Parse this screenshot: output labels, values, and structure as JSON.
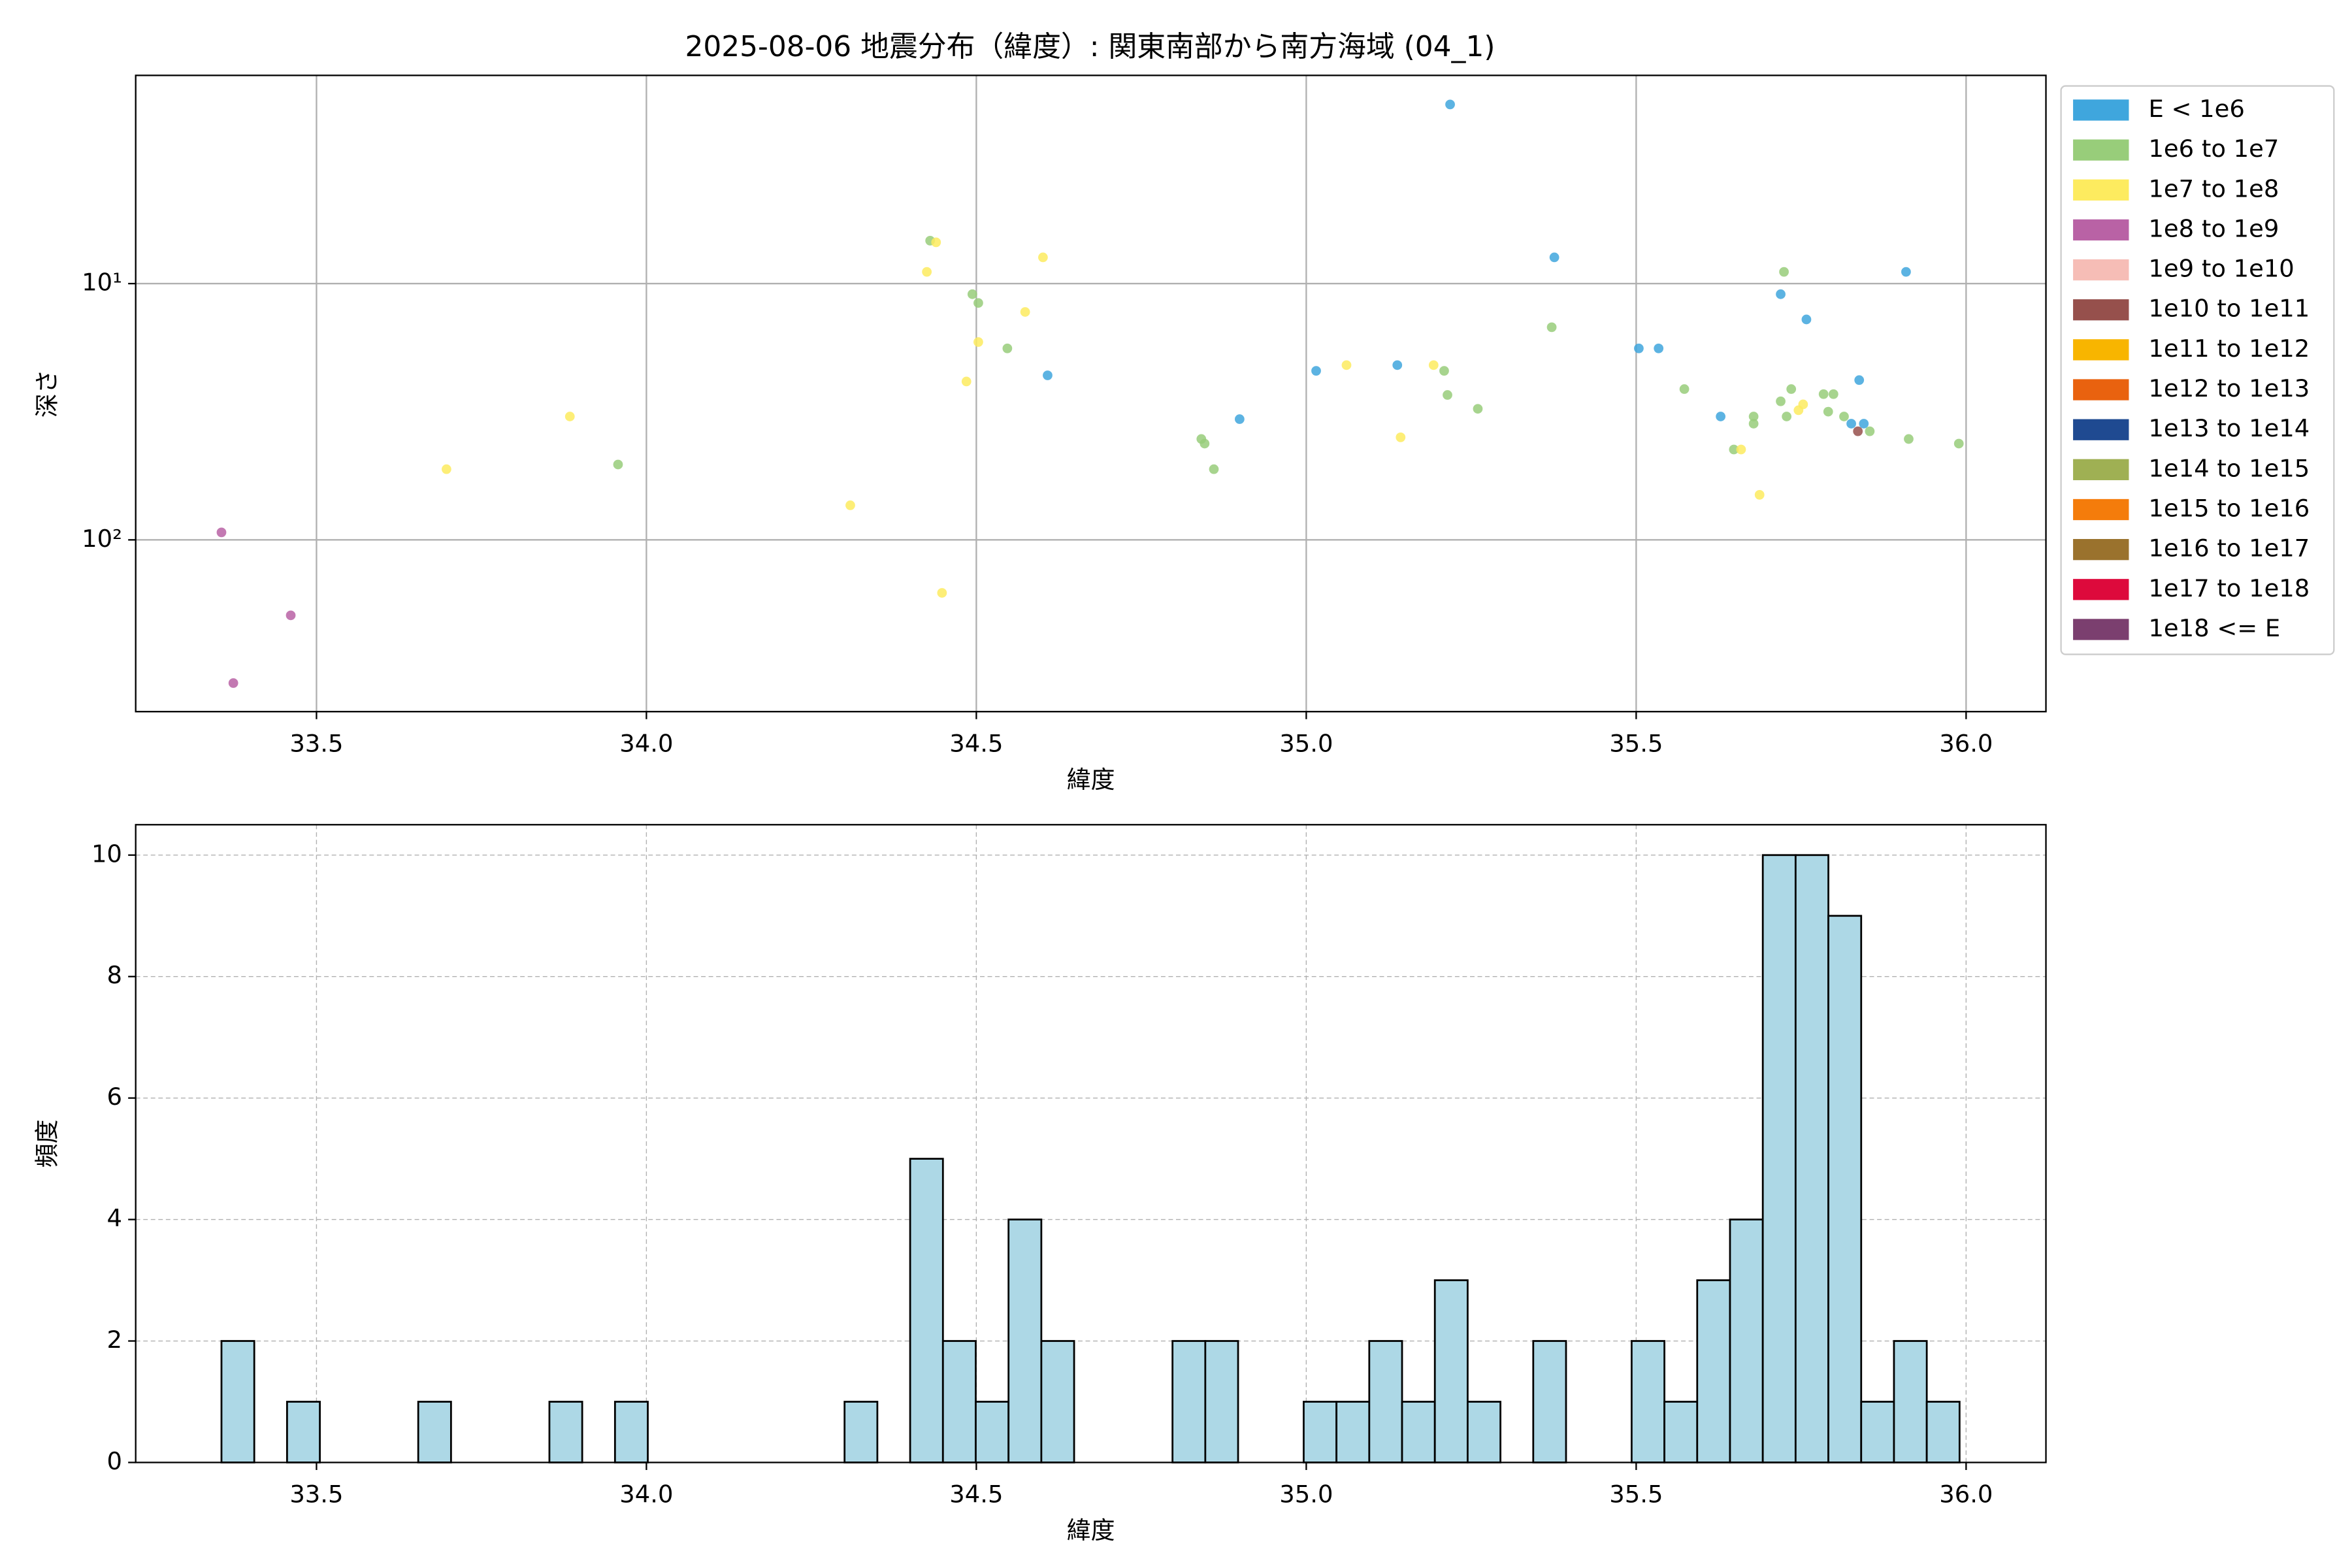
{
  "chart_data": [
    {
      "type": "scatter",
      "title": "2025-08-06 地震分布（緯度）: 関東南部から南方海域 (04_1)",
      "xlabel": "緯度",
      "ylabel": "深さ",
      "xlim": [
        33.226,
        36.121
      ],
      "xticks": [
        33.5,
        {
          "value": 34,
          "label": "34.0"
        },
        34.5,
        {
          "value": 35,
          "label": "35.0"
        },
        35.5,
        {
          "value": 36,
          "label": "36.0"
        }
      ],
      "ylim": [
        1.54,
        468
      ],
      "yscale": "log",
      "yinverted": true,
      "yticks": [
        {
          "value": 10,
          "label": "10¹"
        },
        {
          "value": 100,
          "label": "10²"
        }
      ],
      "grid": true,
      "legend": "outside-upper-right",
      "series": [
        {
          "name": "E < 1e6",
          "color": "#3fa6dd",
          "x": [
            35.218,
            35.376,
            35.909,
            35.719,
            35.758,
            35.504,
            35.534,
            35.138,
            35.015,
            34.608,
            35.838,
            35.628,
            34.899,
            35.826,
            35.845
          ],
          "y": [
            2.0,
            7.9,
            9.0,
            11.0,
            13.8,
            17.9,
            17.9,
            20.8,
            21.9,
            22.8,
            23.8,
            33.0,
            33.8,
            35.2,
            35.2
          ]
        },
        {
          "name": "1e6 to 1e7",
          "color": "#98cd7a",
          "x": [
            34.43,
            35.724,
            34.494,
            34.503,
            35.372,
            34.547,
            35.209,
            35.573,
            35.735,
            35.214,
            35.719,
            35.784,
            35.799,
            35.26,
            35.678,
            35.728,
            35.791,
            35.815,
            35.678,
            35.913,
            35.989,
            34.841,
            34.846,
            35.648,
            33.957,
            34.86,
            35.854
          ],
          "y": [
            6.8,
            9.0,
            11.0,
            11.9,
            14.8,
            17.9,
            21.9,
            25.8,
            25.8,
            27.2,
            28.8,
            27.0,
            27.0,
            30.8,
            33.0,
            33.0,
            31.6,
            33.0,
            35.2,
            40.4,
            42.1,
            40.4,
            42.1,
            44.4,
            50.8,
            53.0,
            37.7
          ]
        },
        {
          "name": "1e7 to 1e8",
          "color": "#fdeb5f",
          "x": [
            34.439,
            34.601,
            34.425,
            34.574,
            34.503,
            35.061,
            35.193,
            34.485,
            35.753,
            35.746,
            33.884,
            35.143,
            35.659,
            33.697,
            35.687,
            34.309,
            34.448
          ],
          "y": [
            6.9,
            7.9,
            9.0,
            12.9,
            16.9,
            20.8,
            20.8,
            24.1,
            29.6,
            31.2,
            33.0,
            39.8,
            44.4,
            53.0,
            66.7,
            73.3,
            161
          ]
        },
        {
          "name": "1e8 to 1e9",
          "color": "#b962a5",
          "x": [
            33.356,
            33.461,
            33.374
          ],
          "y": [
            93.5,
            197,
            362
          ]
        },
        {
          "name": "1e9 to 1e10",
          "color": "#f6bdb6",
          "x": [],
          "y": []
        },
        {
          "name": "1e10 to 1e11",
          "color": "#96504c",
          "x": [
            35.836
          ],
          "y": [
            37.7
          ]
        },
        {
          "name": "1e11 to 1e12",
          "color": "#f8b500",
          "x": [],
          "y": []
        },
        {
          "name": "1e12 to 1e13",
          "color": "#e9620f",
          "x": [],
          "y": []
        },
        {
          "name": "1e13 to 1e14",
          "color": "#1f4a91",
          "x": [],
          "y": []
        },
        {
          "name": "1e14 to 1e15",
          "color": "#9fb053",
          "x": [],
          "y": []
        },
        {
          "name": "1e15 to 1e16",
          "color": "#f47c0b",
          "x": [],
          "y": []
        },
        {
          "name": "1e16 to 1e17",
          "color": "#9a722d",
          "x": [],
          "y": []
        },
        {
          "name": "1e17 to 1e18",
          "color": "#dd0a3c",
          "x": [],
          "y": []
        },
        {
          "name": "1e18 <= E",
          "color": "#7b3f6f",
          "x": [],
          "y": []
        }
      ]
    },
    {
      "type": "histogram",
      "xlabel": "緯度",
      "ylabel": "頻度",
      "xlim": [
        33.226,
        36.121
      ],
      "xticks": [
        33.5,
        {
          "value": 34,
          "label": "34.0"
        },
        34.5,
        {
          "value": 35,
          "label": "35.0"
        },
        35.5,
        {
          "value": 36,
          "label": "36.0"
        }
      ],
      "ylim": [
        0,
        10.5
      ],
      "yticks": [
        0,
        2,
        4,
        6,
        8,
        10
      ],
      "grid": true,
      "grid_style": "dashed",
      "color": "#add8e6",
      "edgecolor": "#000000",
      "bins": [
        33.356,
        33.4057,
        33.4554,
        33.5051,
        33.5548,
        33.6045,
        33.6542,
        33.7039,
        33.7536,
        33.8033,
        33.853,
        33.9027,
        33.9524,
        34.0021,
        34.0518,
        34.1015,
        34.1512,
        34.2009,
        34.2506,
        34.3003,
        34.35,
        34.3997,
        34.4494,
        34.4991,
        34.5488,
        34.5985,
        34.6482,
        34.6979,
        34.7476,
        34.7973,
        34.847,
        34.8967,
        34.9464,
        34.9961,
        35.0458,
        35.0955,
        35.1452,
        35.1949,
        35.2446,
        35.2943,
        35.344,
        35.3937,
        35.4434,
        35.4931,
        35.5428,
        35.5925,
        35.6422,
        35.6919,
        35.7416,
        35.7913,
        35.841,
        35.8907,
        35.9404,
        35.9901
      ],
      "counts": [
        2,
        0,
        1,
        0,
        0,
        0,
        1,
        0,
        0,
        0,
        1,
        0,
        1,
        0,
        0,
        0,
        0,
        0,
        0,
        1,
        0,
        5,
        2,
        1,
        4,
        2,
        0,
        0,
        0,
        2,
        2,
        0,
        0,
        1,
        1,
        2,
        1,
        3,
        1,
        0,
        2,
        0,
        0,
        2,
        1,
        3,
        4,
        10,
        10,
        9,
        1,
        2,
        1
      ]
    }
  ]
}
